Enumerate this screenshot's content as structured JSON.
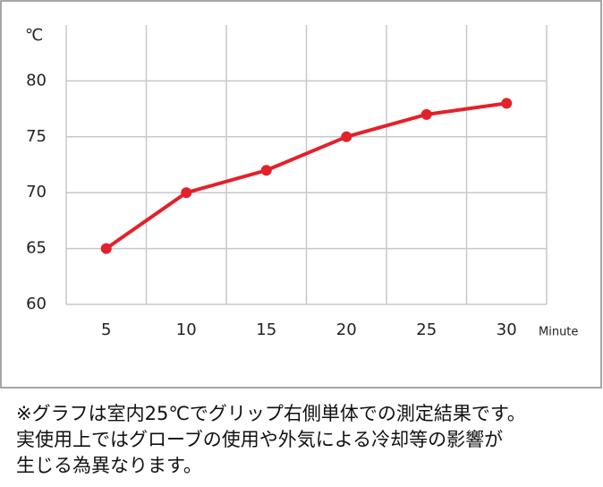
{
  "chart_data": {
    "type": "line",
    "y_unit_label": "℃",
    "x_label": "Minute",
    "categories": [
      "5",
      "10",
      "15",
      "20",
      "25",
      "30"
    ],
    "values": [
      65,
      70,
      72,
      75,
      77,
      78
    ],
    "color": "#e3212b",
    "ylim": [
      60,
      85
    ],
    "yticks": [
      60,
      65,
      70,
      75,
      80
    ],
    "grid": true
  },
  "note": [
    "※グラフは室内25℃でグリップ右側単体での測定結果です。",
    "実使用上ではグローブの使用や外気による冷却等の影響が",
    "生じる為異なります。"
  ]
}
